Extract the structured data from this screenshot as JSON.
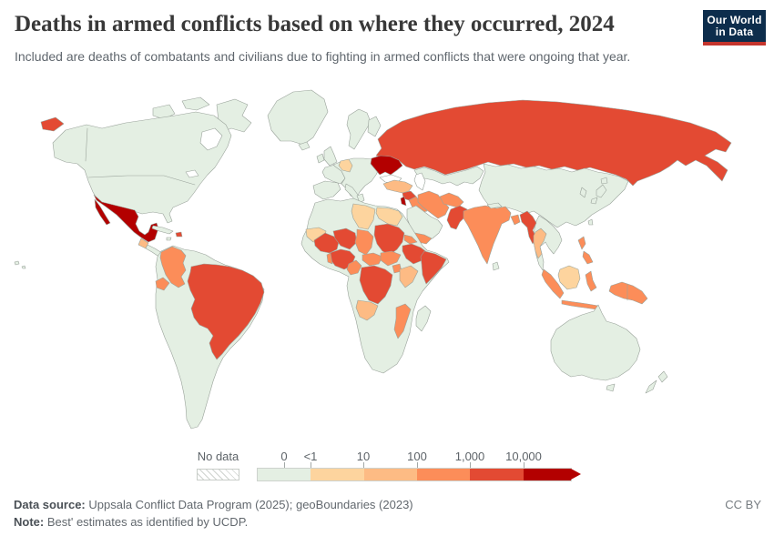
{
  "header": {
    "title": "Deaths in armed conflicts based on where they occurred, 2024",
    "subtitle": "Included are deaths of combatants and civilians due to fighting in armed conflicts that were ongoing that year."
  },
  "logo": {
    "line1": "Our World",
    "line2": "in Data",
    "background": "#0d2d4c",
    "accent": "#c5352d"
  },
  "legend": {
    "no_data_label": "No data",
    "ticks": [
      "0",
      "<1",
      "10",
      "100",
      "1,000",
      "10,000"
    ],
    "bins": [
      "green",
      "peach1",
      "peach2",
      "orange",
      "red",
      "darkred"
    ]
  },
  "map": {
    "ocean": "#ffffff",
    "border_color": "#9aa39b",
    "palette": {
      "green": "#e4efe3",
      "peach1": "#fdd49e",
      "peach2": "#fdbb84",
      "orange": "#fc8d59",
      "red": "#e34a33",
      "darkred": "#b30000"
    },
    "countries": {
      "greenland": "green",
      "arctic1": "green",
      "arctic2": "green",
      "arctic3": "green",
      "north-america": "green",
      "central-america": "green",
      "cuba": "green",
      "jamaica": "green",
      "south-america": "green",
      "europe": "green",
      "iberia": "green",
      "france": "green",
      "uk": "green",
      "ireland": "green",
      "iceland": "green",
      "scandinavia": "green",
      "finland": "green",
      "italy": "green",
      "sicily": "green",
      "greece": "green",
      "kazakhstan": "green",
      "china": "green",
      "honshu": "green",
      "hokkaido": "green",
      "kyushu": "green",
      "korea": "green",
      "taiwan": "green",
      "indochina": "green",
      "sri-lanka": "green",
      "nepal": "green",
      "arabia": "green",
      "africa": "green",
      "madagascar": "green",
      "australia": "green",
      "tasmania": "green",
      "nz-north": "green",
      "nz-south": "green",
      "hawaii1": "green",
      "hawaii2": "green",
      "germany": "peach1",
      "libya": "peach1",
      "egypt": "peach1",
      "mauritania": "peach1",
      "borneo": "peach1",
      "turkey": "peach2",
      "kenya": "peach2",
      "angola": "peach2",
      "thailand": "peach2",
      "guatemala": "peach2",
      "colombia": "orange",
      "ecuador": "orange",
      "iraq": "orange",
      "iran": "orange",
      "afghanistan": "orange",
      "india": "orange",
      "bangladesh": "orange",
      "yemen": "orange",
      "chad": "orange",
      "benin": "orange",
      "cameroon": "orange",
      "car": "orange",
      "south-sudan": "orange",
      "uganda": "orange",
      "eritrea": "orange",
      "mozambique": "orange",
      "sumatra": "orange",
      "java": "orange",
      "sulawesi": "orange",
      "philippines1": "orange",
      "philippines2": "orange",
      "new-guinea": "orange",
      "russia": "red",
      "chukotka": "red",
      "brazil": "red",
      "haiti": "red",
      "syria": "red",
      "pakistan": "red",
      "myanmar": "red",
      "mali": "red",
      "niger": "red",
      "nigeria": "red",
      "sudan": "red",
      "ethiopia": "red",
      "somalia": "red",
      "drc": "red",
      "mexico": "darkred",
      "baja": "darkred",
      "ukraine": "darkred",
      "levant": "darkred"
    }
  },
  "chart_data": {
    "type": "choropleth-map",
    "title": "Deaths in armed conflicts based on where they occurred, 2024",
    "legend_tick_labels": [
      "0",
      "<1",
      "10",
      "100",
      "1,000",
      "10,000"
    ],
    "legend_no_data": "No data",
    "scale_colors": [
      "#e4efe3",
      "#fdd49e",
      "#fdbb84",
      "#fc8d59",
      "#e34a33",
      "#b30000"
    ],
    "countries_by_bin": {
      "over_10000": [
        "Mexico",
        "Ukraine",
        "Lebanon/Israel area"
      ],
      "1000_to_10000": [
        "Russia",
        "Brazil",
        "Haiti",
        "Syria",
        "Pakistan",
        "Myanmar",
        "Mali",
        "Burkina Faso",
        "Niger",
        "Nigeria",
        "Sudan",
        "Ethiopia",
        "Somalia",
        "DR Congo"
      ],
      "100_to_1000": [
        "Colombia",
        "Ecuador",
        "Iraq",
        "Iran",
        "Afghanistan",
        "India",
        "Bangladesh",
        "Yemen",
        "Chad",
        "Benin",
        "Cameroon",
        "Central African Republic",
        "South Sudan",
        "Uganda",
        "Eritrea",
        "Mozambique",
        "Indonesia",
        "Philippines",
        "Papua New Guinea"
      ],
      "10_to_100": [
        "Turkey",
        "Kenya",
        "Angola",
        "Thailand",
        "Guatemala"
      ],
      "under_10": [
        "Germany",
        "Libya",
        "Egypt",
        "Mauritania",
        "Malaysia"
      ],
      "zero": [
        "United States",
        "Canada",
        "Greenland",
        "Most of Europe",
        "China",
        "Japan",
        "Saudi Arabia",
        "Tanzania",
        "South Africa",
        "Madagascar",
        "Australia",
        "New Zealand",
        "Argentina",
        "Peru"
      ]
    }
  },
  "footer": {
    "source_label": "Data source:",
    "source": "Uppsala Conflict Data Program (2025); geoBoundaries (2023)",
    "note_label": "Note:",
    "note": "Best' estimates as identified by UCDP.",
    "license": "CC BY"
  }
}
